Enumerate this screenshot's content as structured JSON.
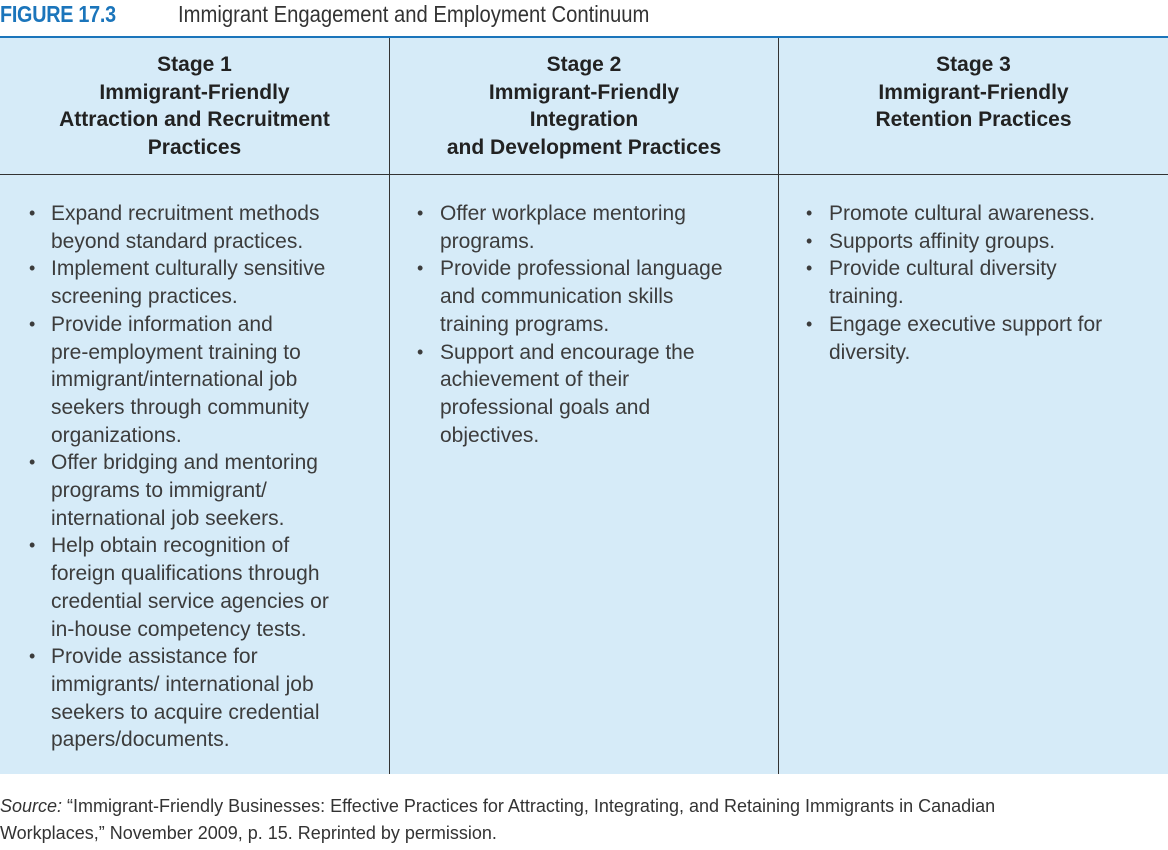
{
  "figure": {
    "label": "FIGURE 17.3",
    "caption": "Immigrant Engagement and Employment Continuum"
  },
  "colors": {
    "accent": "#1b75bb",
    "table_background": "#d6ebf8",
    "rule": "#333333"
  },
  "columns": [
    {
      "header_lines": [
        "Stage 1",
        "Immigrant-Friendly",
        "Attraction and Recruitment",
        "Practices"
      ],
      "items": [
        [
          "Expand recruitment methods",
          "beyond standard practices."
        ],
        [
          "Implement culturally sensitive",
          "screening practices."
        ],
        [
          "Provide information and",
          "pre-employment training to",
          "immigrant/international job",
          "seekers through community",
          "organizations."
        ],
        [
          "Offer bridging and mentoring",
          "programs to immigrant/",
          "international job seekers."
        ],
        [
          "Help obtain recognition of",
          "foreign qualifications through",
          "credential service agencies or",
          "in-house competency tests."
        ],
        [
          "Provide assistance for",
          "immigrants/ international job",
          "seekers to acquire credential",
          "papers/documents."
        ]
      ]
    },
    {
      "header_lines": [
        "Stage 2",
        "Immigrant-Friendly",
        "Integration",
        "and Development Practices"
      ],
      "items": [
        [
          "Offer workplace mentoring",
          "programs."
        ],
        [
          "Provide professional language",
          "and communication skills",
          "training programs."
        ],
        [
          "Support and encourage the",
          "achievement of their",
          "professional goals and",
          "objectives."
        ]
      ]
    },
    {
      "header_lines": [
        "Stage 3",
        "Immigrant-Friendly",
        "Retention Practices"
      ],
      "items": [
        [
          "Promote cultural awareness."
        ],
        [
          "Supports affinity groups."
        ],
        [
          "Provide cultural diversity",
          "training."
        ],
        [
          "Engage executive support for",
          "diversity."
        ]
      ]
    }
  ],
  "source": {
    "label": "Source:",
    "line1": " “Immigrant-Friendly Businesses: Effective Practices for Attracting, Integrating, and Retaining Immigrants in Canadian",
    "line2": "Workplaces,” November 2009, p. 15. Reprinted by permission."
  }
}
